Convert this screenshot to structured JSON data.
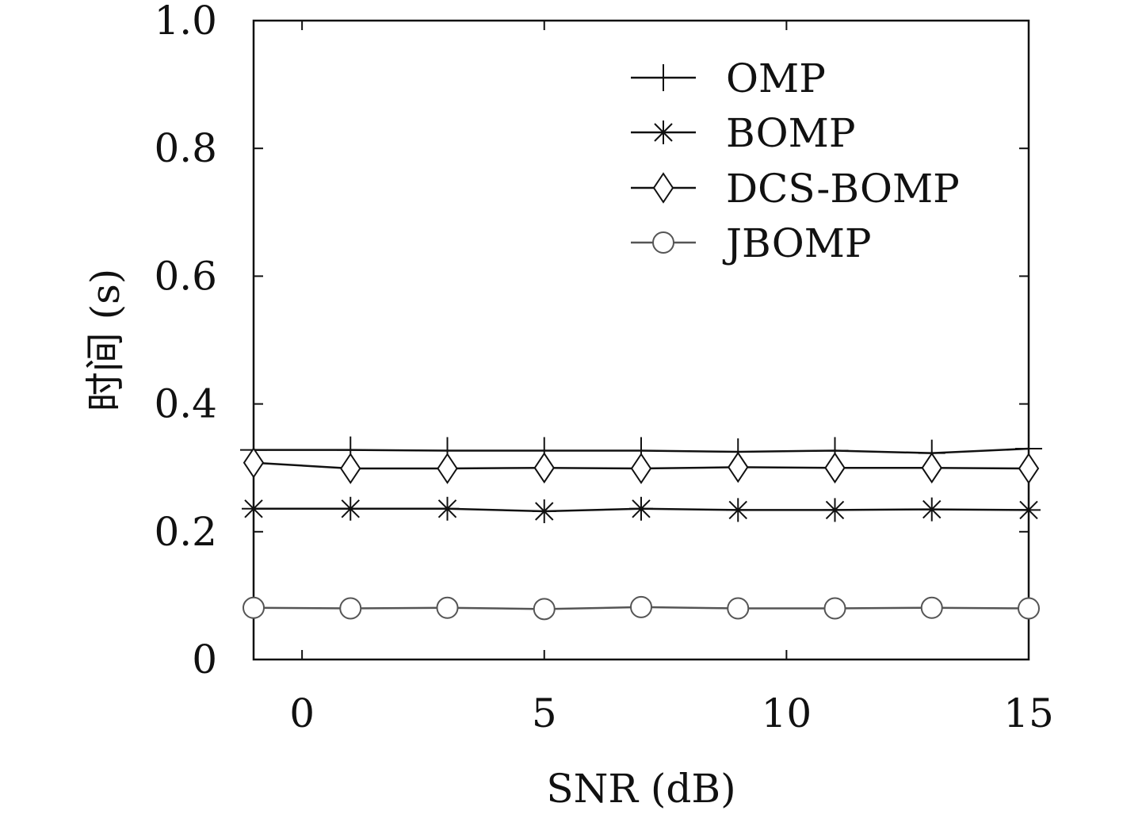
{
  "chart_data": {
    "type": "line",
    "title": "",
    "xlabel": "SNR (dB)",
    "ylabel": "时间 (s)",
    "xlim": [
      -1,
      15
    ],
    "ylim": [
      0,
      1.0
    ],
    "xticks": [
      0,
      5,
      10,
      15
    ],
    "xtick_labels": [
      "0",
      "5",
      "10",
      "15"
    ],
    "yticks": [
      0,
      0.2,
      0.4,
      0.6,
      0.8,
      1.0
    ],
    "ytick_labels": [
      "0",
      "0.2",
      "0.4",
      "0.6",
      "0.8",
      "1.0"
    ],
    "grid": false,
    "legend_position": "top-right",
    "x": [
      -1,
      1,
      3,
      5,
      7,
      9,
      11,
      13,
      15
    ],
    "series": [
      {
        "name": "OMP",
        "marker": "plus",
        "color": "#111111",
        "values": [
          0.328,
          0.328,
          0.327,
          0.327,
          0.327,
          0.325,
          0.327,
          0.323,
          0.33
        ]
      },
      {
        "name": "BOMP",
        "marker": "asterisk",
        "color": "#111111",
        "values": [
          0.236,
          0.236,
          0.236,
          0.232,
          0.236,
          0.234,
          0.234,
          0.235,
          0.234
        ]
      },
      {
        "name": "DCS-BOMP",
        "marker": "diamond",
        "color": "#111111",
        "values": [
          0.308,
          0.299,
          0.299,
          0.3,
          0.299,
          0.301,
          0.3,
          0.3,
          0.299
        ]
      },
      {
        "name": "JBOMP",
        "marker": "circle",
        "color": "#555555",
        "values": [
          0.081,
          0.08,
          0.081,
          0.079,
          0.082,
          0.08,
          0.08,
          0.081,
          0.08
        ]
      }
    ]
  }
}
